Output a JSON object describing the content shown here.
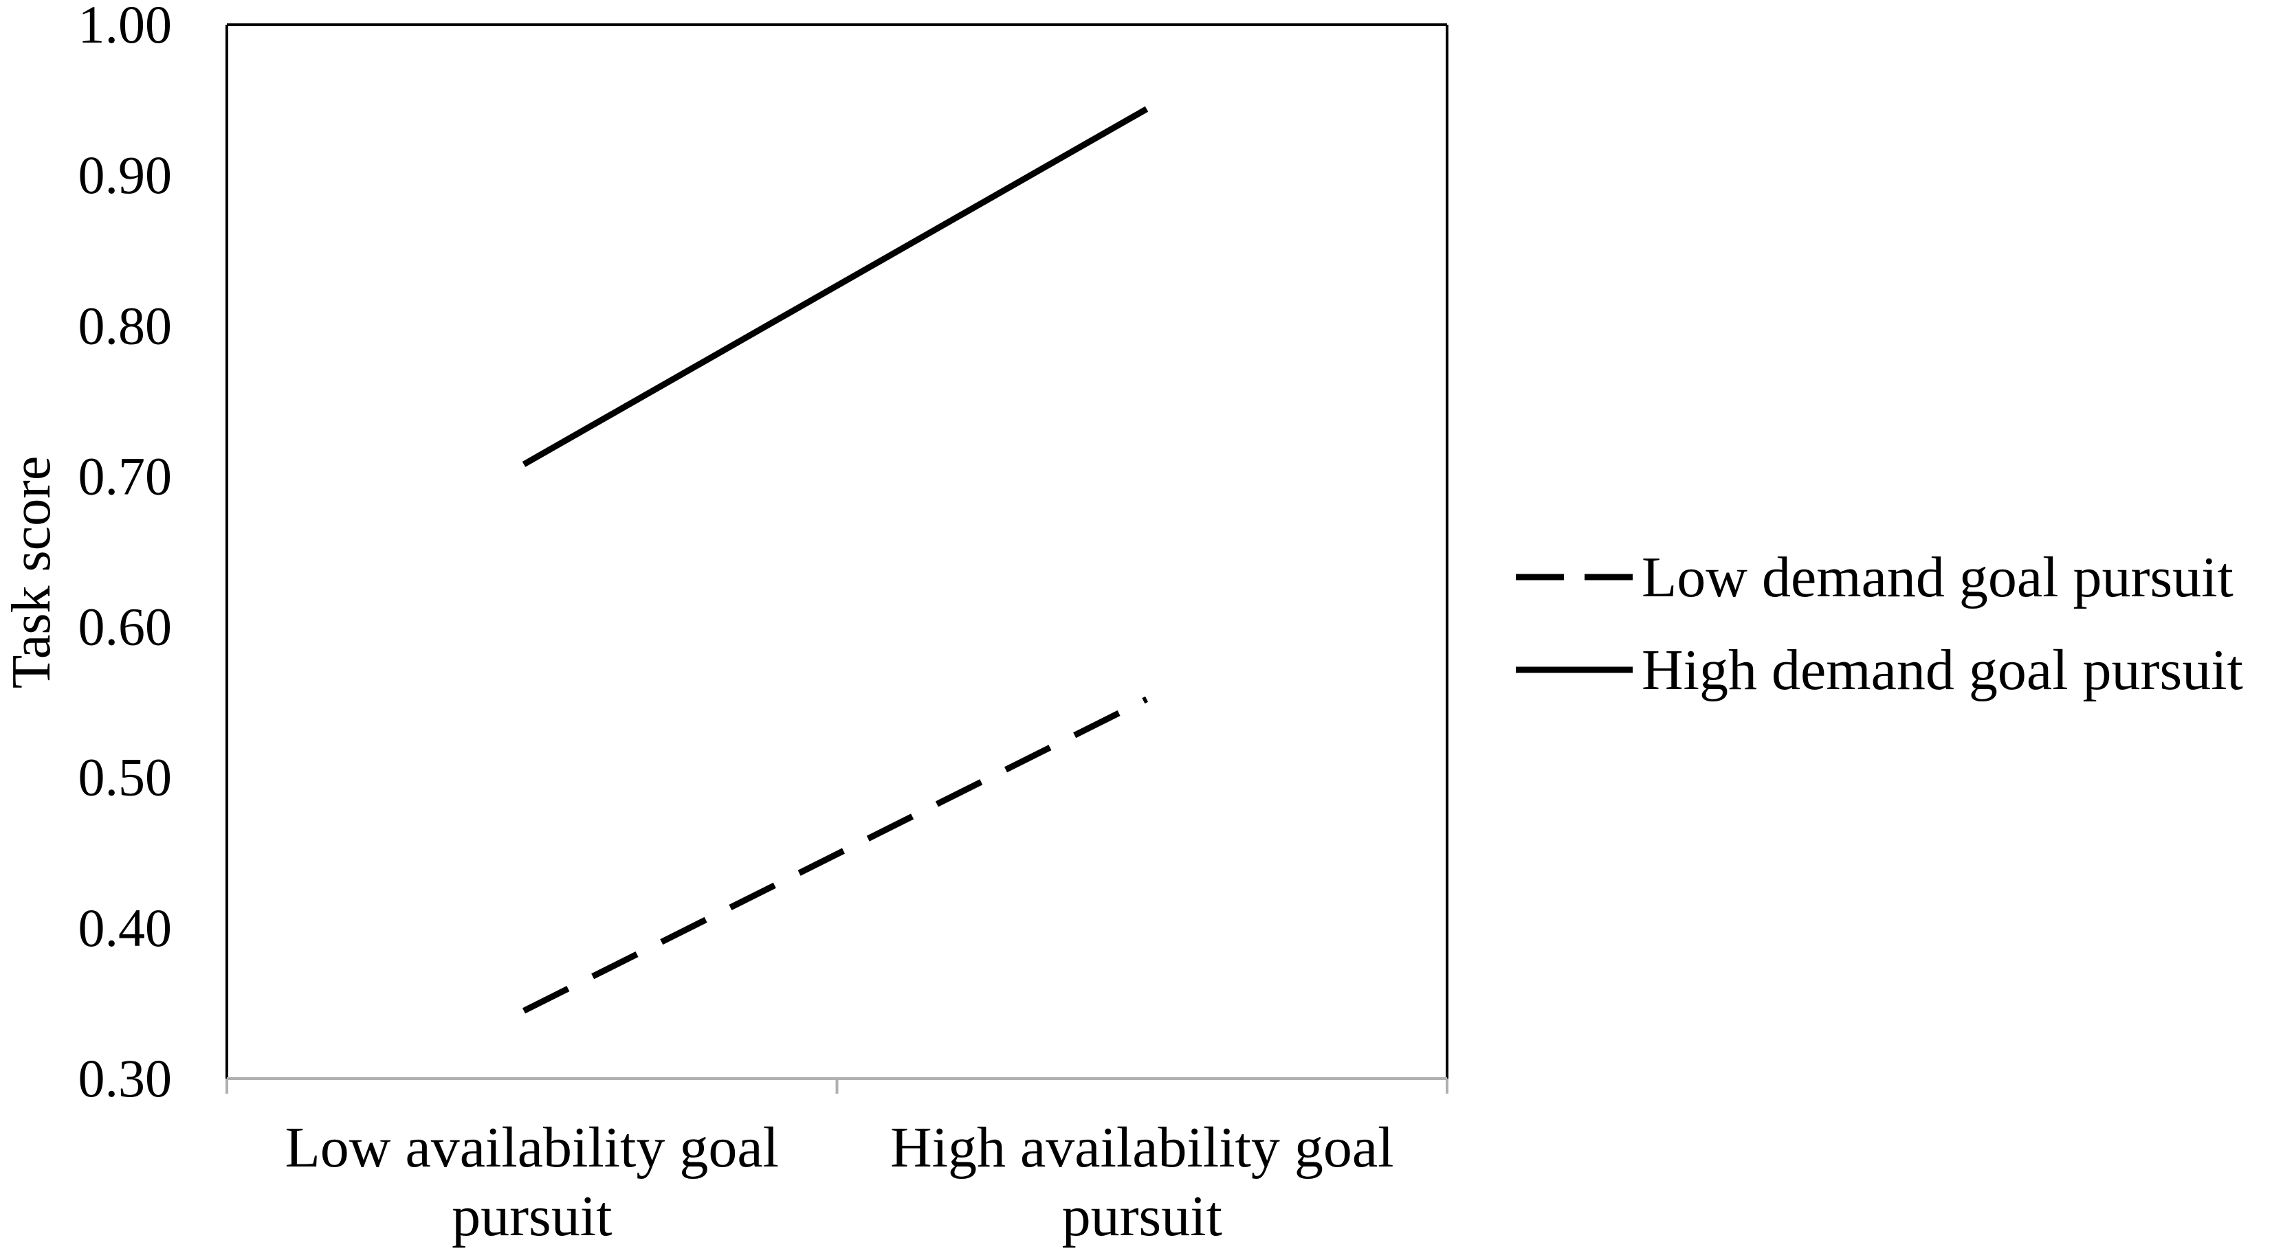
{
  "chart_data": {
    "type": "line",
    "title": "",
    "xlabel": "",
    "ylabel": "Task score",
    "ylim": [
      0.3,
      1.0
    ],
    "yticks": [
      "0.30",
      "0.40",
      "0.50",
      "0.60",
      "0.70",
      "0.80",
      "0.90",
      "1.00"
    ],
    "categories": [
      [
        "Low availability goal",
        "pursuit"
      ],
      [
        "High availability goal",
        "pursuit"
      ]
    ],
    "series": [
      {
        "name": "Low demand goal pursuit",
        "values": [
          0.345,
          0.552
        ],
        "line_style": "dashed",
        "color": "#000000"
      },
      {
        "name": "High demand goal pursuit",
        "values": [
          0.708,
          0.944
        ],
        "line_style": "solid",
        "color": "#000000"
      }
    ],
    "grid": false,
    "legend_position": "right"
  }
}
